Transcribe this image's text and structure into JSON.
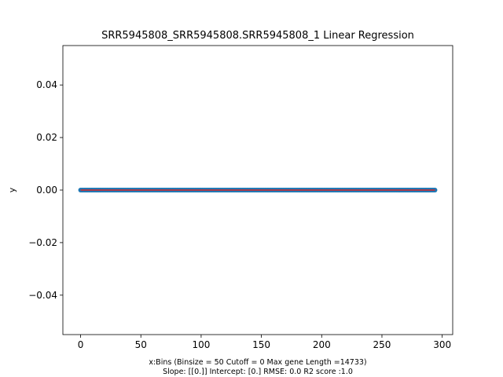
{
  "chart_data": {
    "type": "scatter",
    "title": "SRR5945808_SRR5945808.SRR5945808_1 Linear Regression",
    "xlabel_lines": [
      "x:Bins  (Binsize = 50 Cutoff = 0 Max gene Length =14733)",
      "Slope: [[0.]] Intercept: [0.] RMSE: 0.0 R2 score :1.0"
    ],
    "ylabel": "y",
    "xlim": [
      -14.7,
      308.7
    ],
    "ylim": [
      -0.055,
      0.055
    ],
    "xticks": [
      0,
      50,
      100,
      150,
      200,
      250,
      300
    ],
    "xtick_labels": [
      "0",
      "50",
      "100",
      "150",
      "200",
      "250",
      "300"
    ],
    "yticks": [
      -0.04,
      -0.02,
      0.0,
      0.02,
      0.04
    ],
    "ytick_labels": [
      "−0.04",
      "−0.02",
      "0.00",
      "0.02",
      "0.04"
    ],
    "grid": false,
    "series": [
      {
        "kind": "points",
        "x_start": 0,
        "x_end": 294,
        "x_step": 1,
        "y": 0.0,
        "color": "#1f77b4"
      },
      {
        "kind": "regression-line",
        "x": [
          0,
          294
        ],
        "y": [
          0.0,
          0.0
        ],
        "color": "#d62728"
      }
    ]
  }
}
